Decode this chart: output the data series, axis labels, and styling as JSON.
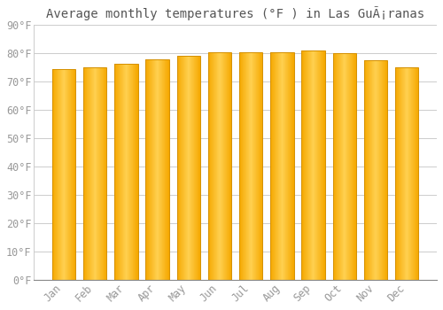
{
  "title": "Average monthly temperatures (°F ) in Las GuÃ¡ranas",
  "months": [
    "Jan",
    "Feb",
    "Mar",
    "Apr",
    "May",
    "Jun",
    "Jul",
    "Aug",
    "Sep",
    "Oct",
    "Nov",
    "Dec"
  ],
  "values": [
    74.5,
    75.0,
    76.2,
    78.0,
    79.2,
    80.3,
    80.5,
    80.4,
    81.0,
    80.0,
    77.5,
    75.2
  ],
  "bar_color_left": "#F5A800",
  "bar_color_center": "#FFD050",
  "bar_color_right": "#F5A800",
  "background_color": "#FFFFFF",
  "plot_bg_color": "#FFFFFF",
  "grid_color": "#CCCCCC",
  "text_color": "#999999",
  "title_color": "#555555",
  "ylim": [
    0,
    90
  ],
  "yticks": [
    0,
    10,
    20,
    30,
    40,
    50,
    60,
    70,
    80,
    90
  ],
  "ylabel_format": "°F",
  "title_fontsize": 10,
  "tick_fontsize": 8.5
}
